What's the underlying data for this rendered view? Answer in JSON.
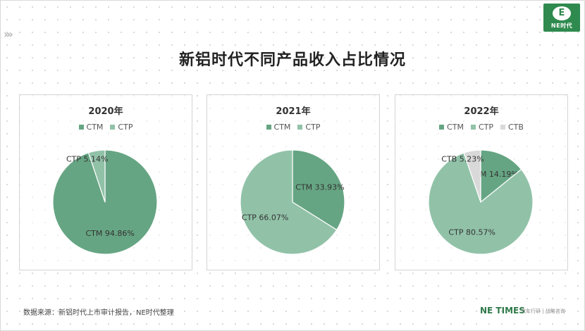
{
  "header": {
    "title": "新铝时代不同产品收入占比情况",
    "logo_text": "NE时代",
    "logo_mark": "E"
  },
  "colors": {
    "CTM": "#66a583",
    "CTP": "#91c2a8",
    "CTB": "#d9d9d9"
  },
  "chart_data": [
    {
      "type": "pie",
      "title": "2020年",
      "legend": [
        "CTM",
        "CTP"
      ],
      "slices": [
        {
          "label": "CTM",
          "value": 94.86,
          "display": "94.86%"
        },
        {
          "label": "CTP",
          "value": 5.14,
          "display": "5.14%"
        }
      ]
    },
    {
      "type": "pie",
      "title": "2021年",
      "legend": [
        "CTM",
        "CTP"
      ],
      "slices": [
        {
          "label": "CTM",
          "value": 33.93,
          "display": "33.93%"
        },
        {
          "label": "CTP",
          "value": 66.07,
          "display": "66.07%"
        }
      ]
    },
    {
      "type": "pie",
      "title": "2022年",
      "legend": [
        "CTM",
        "CTP",
        "CTB"
      ],
      "slices": [
        {
          "label": "CTM",
          "value": 14.19,
          "display": "14.19%"
        },
        {
          "label": "CTP",
          "value": 80.57,
          "display": "80.57%"
        },
        {
          "label": "CTB",
          "value": 5.23,
          "display": "5.23%"
        }
      ]
    }
  ],
  "footer": {
    "source": "数据来源：新铝时代上市审计报告，NE时代整理",
    "brand": "NE TIMES",
    "sub": "汽车行研 | 战略咨询"
  }
}
